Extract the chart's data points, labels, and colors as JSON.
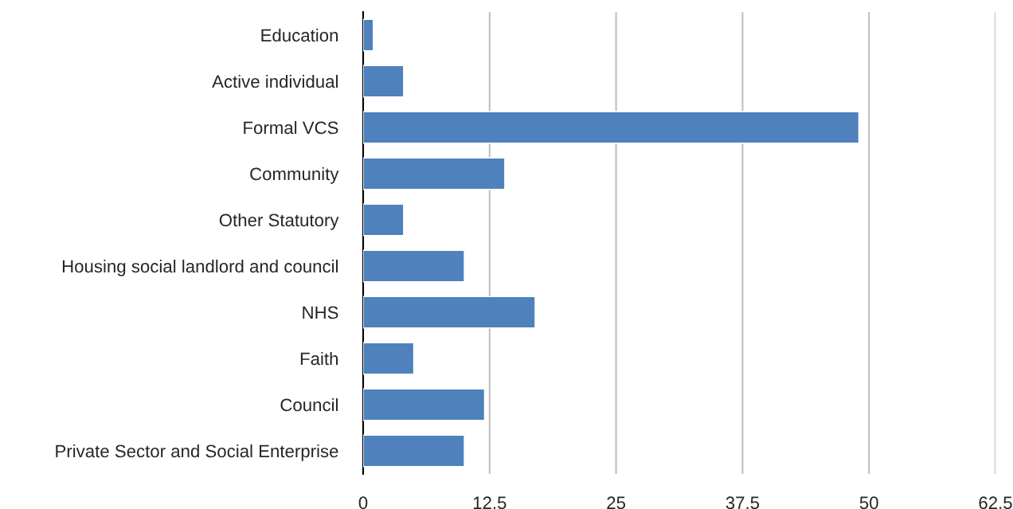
{
  "chart_data": {
    "type": "bar",
    "orientation": "horizontal",
    "categories": [
      "Education",
      "Active individual",
      "Formal VCS",
      "Community",
      "Other Statutory",
      "Housing social landlord and council",
      "NHS",
      "Faith",
      "Council",
      "Private Sector and Social Enterprise"
    ],
    "values": [
      1,
      4,
      49,
      14,
      4,
      10,
      17,
      5,
      12,
      10
    ],
    "color": "#4f81bd",
    "xlim": [
      0,
      62.5
    ],
    "xticks": [
      0,
      {
        "value": 12.5,
        "label": "12.5"
      },
      25,
      {
        "value": 37.5,
        "label": "37.5"
      },
      50,
      {
        "value": 62.5,
        "label": "62.5"
      }
    ],
    "grid": "x",
    "legend": false
  }
}
